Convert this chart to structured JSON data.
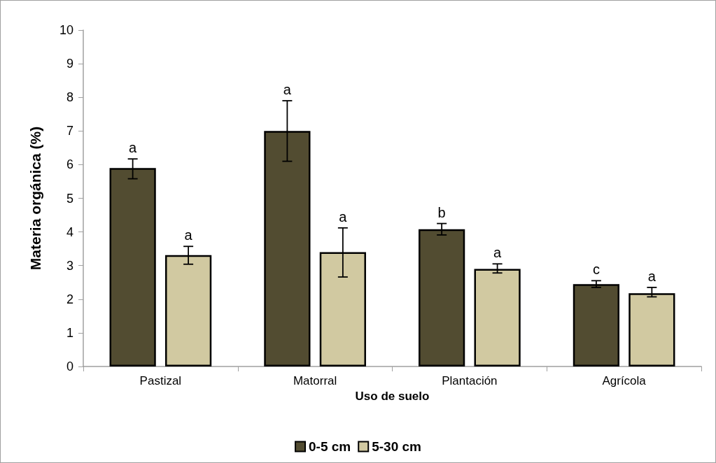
{
  "chart_data": {
    "type": "bar",
    "xlabel": "Uso de suelo",
    "ylabel": "Materia orgánica (%)",
    "categories": [
      "Pastizal",
      "Matorral",
      "Plantación",
      "Agrícola"
    ],
    "series": [
      {
        "name": "0-5 cm",
        "color": "#524c31",
        "values": [
          5.9,
          7.0,
          4.08,
          2.45
        ],
        "errors": [
          [
            5.58,
            6.17
          ],
          [
            6.1,
            7.9
          ],
          [
            3.91,
            4.25
          ],
          [
            2.35,
            2.55
          ]
        ],
        "value_labels": [
          "a",
          "a",
          "b",
          "c"
        ]
      },
      {
        "name": "5-30 cm",
        "color": "#d1c9a1",
        "values": [
          3.31,
          3.4,
          2.9,
          2.18
        ],
        "errors": [
          [
            3.04,
            3.57
          ],
          [
            2.66,
            4.12
          ],
          [
            2.78,
            3.05
          ],
          [
            2.07,
            2.35
          ]
        ],
        "value_labels": [
          "a",
          "a",
          "a",
          "a"
        ]
      }
    ],
    "ylim": [
      0,
      10
    ],
    "yticks": [
      0,
      1,
      2,
      3,
      4,
      5,
      6,
      7,
      8,
      9,
      10
    ],
    "grid": false,
    "legend": "bottom"
  }
}
